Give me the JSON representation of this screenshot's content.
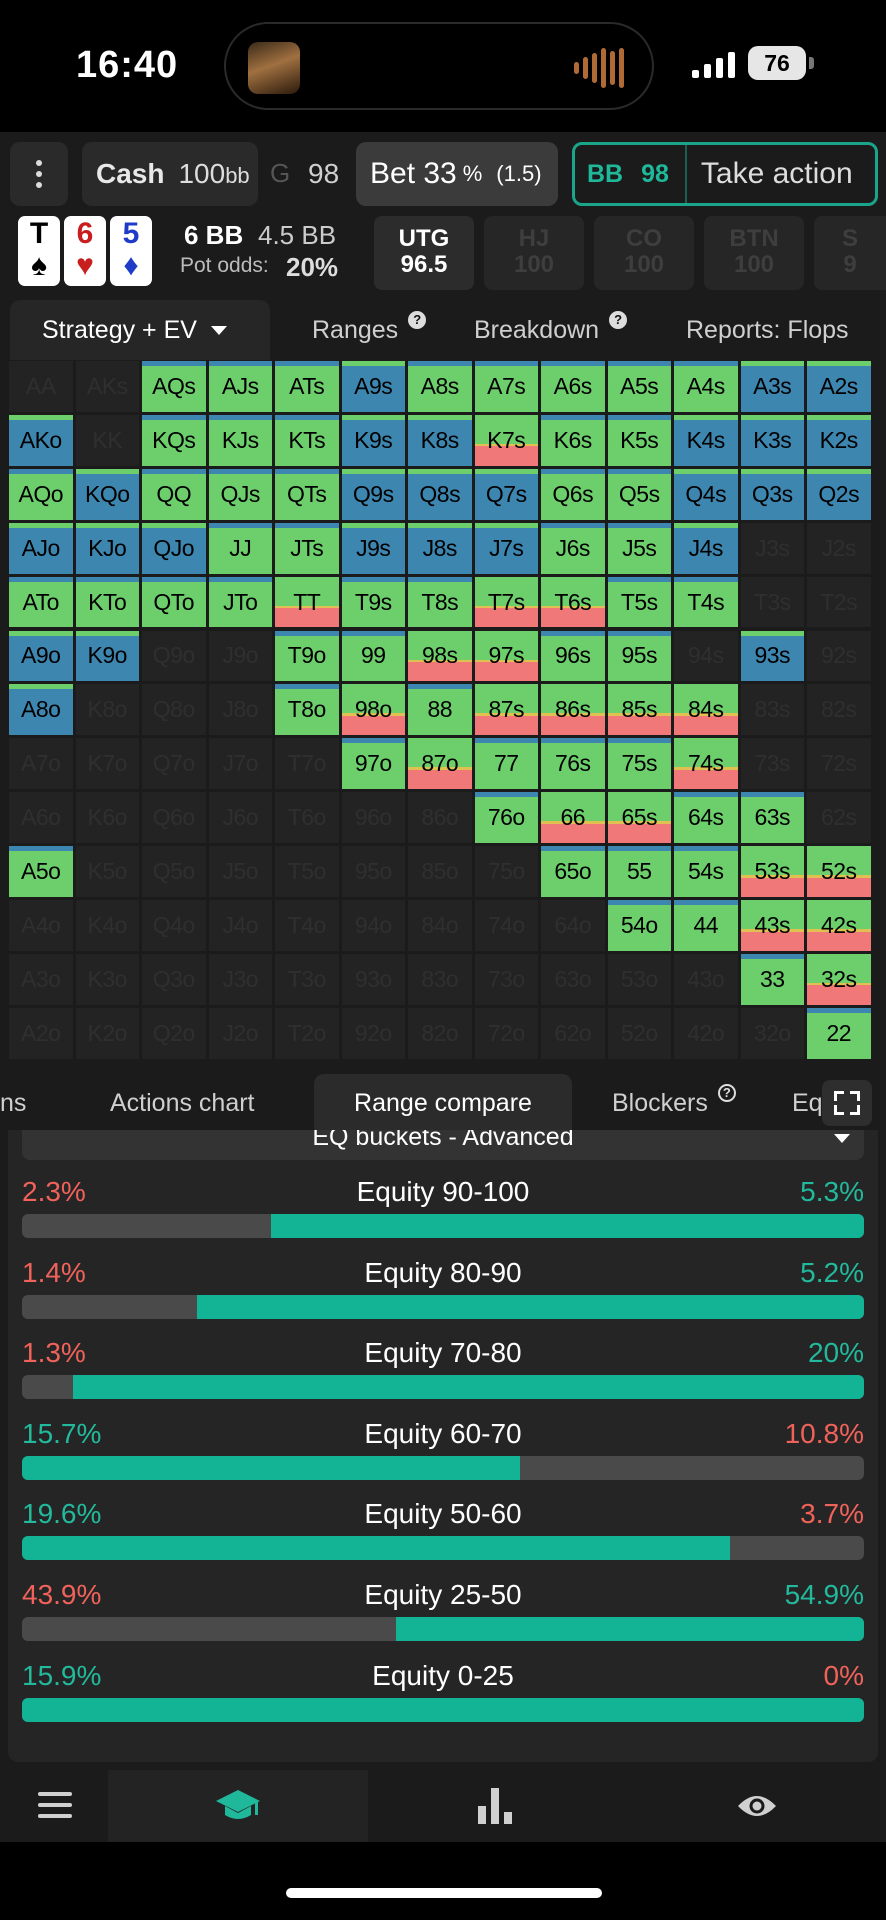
{
  "status_bar": {
    "time": "16:40",
    "battery": "76"
  },
  "toolbar": {
    "game": "Cash",
    "stack": "100",
    "stack_unit": "bb",
    "prev_chip": "G",
    "prev_value": "98",
    "bet_label": "Bet 33",
    "bet_pct": "%",
    "bet_size": "(1.5)",
    "bb_label": "BB",
    "bb_value": "98",
    "take_action": "Take action"
  },
  "board": {
    "cards": [
      {
        "rank": "T",
        "suit": "♠",
        "color": "#000000"
      },
      {
        "rank": "6",
        "suit": "♥",
        "color": "#c81e1e"
      },
      {
        "rank": "5",
        "suit": "♦",
        "color": "#1e3cc8"
      }
    ],
    "pot": "6 BB",
    "bet": "4.5 BB",
    "pot_odds_label": "Pot odds:",
    "pot_odds": "20%"
  },
  "positions": [
    {
      "name": "UTG",
      "stack": "96.5",
      "active": true
    },
    {
      "name": "HJ",
      "stack": "100",
      "active": false
    },
    {
      "name": "CO",
      "stack": "100",
      "active": false
    },
    {
      "name": "BTN",
      "stack": "100",
      "active": false
    },
    {
      "name": "S",
      "stack": "9",
      "active": false
    }
  ],
  "main_tabs": [
    {
      "label": "Strategy + EV",
      "selected": true
    },
    {
      "label": "Ranges",
      "help": "?"
    },
    {
      "label": "Breakdown",
      "help": "?"
    },
    {
      "label": "Reports: Flops"
    }
  ],
  "colors": {
    "green": "#6ccf6c",
    "blue": "#3d86b0",
    "red": "#f07878",
    "gold": "#e0c050",
    "teal": "#13b395",
    "coral": "#f0625a"
  },
  "grid": {
    "rows": [
      [
        "AA",
        "AKs",
        "AQs",
        "AJs",
        "ATs",
        "A9s",
        "A8s",
        "A7s",
        "A6s",
        "A5s",
        "A4s",
        "A3s",
        "A2s"
      ],
      [
        "AKo",
        "KK",
        "KQs",
        "KJs",
        "KTs",
        "K9s",
        "K8s",
        "K7s",
        "K6s",
        "K5s",
        "K4s",
        "K3s",
        "K2s"
      ],
      [
        "AQo",
        "KQo",
        "QQ",
        "QJs",
        "QTs",
        "Q9s",
        "Q8s",
        "Q7s",
        "Q6s",
        "Q5s",
        "Q4s",
        "Q3s",
        "Q2s"
      ],
      [
        "AJo",
        "KJo",
        "QJo",
        "JJ",
        "JTs",
        "J9s",
        "J8s",
        "J7s",
        "J6s",
        "J5s",
        "J4s",
        "J3s",
        "J2s"
      ],
      [
        "ATo",
        "KTo",
        "QTo",
        "JTo",
        "TT",
        "T9s",
        "T8s",
        "T7s",
        "T6s",
        "T5s",
        "T4s",
        "T3s",
        "T2s"
      ],
      [
        "A9o",
        "K9o",
        "Q9o",
        "J9o",
        "T9o",
        "99",
        "98s",
        "97s",
        "96s",
        "95s",
        "94s",
        "93s",
        "92s"
      ],
      [
        "A8o",
        "K8o",
        "Q8o",
        "J8o",
        "T8o",
        "98o",
        "88",
        "87s",
        "86s",
        "85s",
        "84s",
        "83s",
        "82s"
      ],
      [
        "A7o",
        "K7o",
        "Q7o",
        "J7o",
        "T7o",
        "97o",
        "87o",
        "77",
        "76s",
        "75s",
        "74s",
        "73s",
        "72s"
      ],
      [
        "A6o",
        "K6o",
        "Q6o",
        "J6o",
        "T6o",
        "96o",
        "86o",
        "76o",
        "66",
        "65s",
        "64s",
        "63s",
        "62s"
      ],
      [
        "A5o",
        "K5o",
        "Q5o",
        "J5o",
        "T5o",
        "95o",
        "85o",
        "75o",
        "65o",
        "55",
        "54s",
        "53s",
        "52s"
      ],
      [
        "A4o",
        "K4o",
        "Q4o",
        "J4o",
        "T4o",
        "94o",
        "84o",
        "74o",
        "64o",
        "54o",
        "44",
        "43s",
        "42s"
      ],
      [
        "A3o",
        "K3o",
        "Q3o",
        "J3o",
        "T3o",
        "93o",
        "83o",
        "73o",
        "63o",
        "53o",
        "43o",
        "33",
        "32s"
      ],
      [
        "A2o",
        "K2o",
        "Q2o",
        "J2o",
        "T2o",
        "92o",
        "82o",
        "72o",
        "62o",
        "52o",
        "42o",
        "32o",
        "22"
      ]
    ],
    "strategy": [
      [
        "n",
        "n",
        "G",
        "G",
        "G",
        "B",
        "G",
        "G",
        "G",
        "G",
        "G",
        "B",
        "B"
      ],
      [
        "B",
        "n",
        "G",
        "G",
        "G",
        "B",
        "B",
        "R",
        "G",
        "G",
        "B",
        "B",
        "B"
      ],
      [
        "G",
        "B",
        "G",
        "G",
        "G",
        "B",
        "B",
        "B",
        "G",
        "G",
        "B",
        "B",
        "B"
      ],
      [
        "B",
        "B",
        "B",
        "G",
        "G",
        "B",
        "B",
        "B",
        "G",
        "G",
        "B",
        "n",
        "n"
      ],
      [
        "G",
        "G",
        "G",
        "G",
        "R",
        "G",
        "G",
        "R",
        "R",
        "G",
        "G",
        "n",
        "n"
      ],
      [
        "B",
        "B",
        "n",
        "n",
        "G",
        "G",
        "R",
        "R",
        "G",
        "G",
        "n",
        "B",
        "n"
      ],
      [
        "B",
        "n",
        "n",
        "n",
        "G",
        "R",
        "G",
        "R",
        "R",
        "R",
        "R",
        "n",
        "n"
      ],
      [
        "n",
        "n",
        "n",
        "n",
        "n",
        "G",
        "R",
        "G",
        "G",
        "G",
        "R",
        "n",
        "n"
      ],
      [
        "n",
        "n",
        "n",
        "n",
        "n",
        "n",
        "n",
        "G",
        "R",
        "R",
        "G",
        "G",
        "n"
      ],
      [
        "G",
        "n",
        "n",
        "n",
        "n",
        "n",
        "n",
        "n",
        "G",
        "G",
        "G",
        "R",
        "R"
      ],
      [
        "n",
        "n",
        "n",
        "n",
        "n",
        "n",
        "n",
        "n",
        "n",
        "G",
        "G",
        "R",
        "R"
      ],
      [
        "n",
        "n",
        "n",
        "n",
        "n",
        "n",
        "n",
        "n",
        "n",
        "n",
        "n",
        "G",
        "R"
      ],
      [
        "n",
        "n",
        "n",
        "n",
        "n",
        "n",
        "n",
        "n",
        "n",
        "n",
        "n",
        "n",
        "G"
      ]
    ]
  },
  "sub_tabs": [
    {
      "label": "ns"
    },
    {
      "label": "Actions chart"
    },
    {
      "label": "Range compare",
      "selected": true
    },
    {
      "label": "Blockers",
      "help": "?"
    },
    {
      "label": "Eq"
    }
  ],
  "dropdown": {
    "label": "EQ buckets - Advanced"
  },
  "buckets": [
    {
      "label": "Equity 90-100",
      "left": "2.3%",
      "right": "5.3%",
      "left_color": "red",
      "right_color": "teal",
      "fill_start": 0.296,
      "fill_end": 1.0
    },
    {
      "label": "Equity 80-90",
      "left": "1.4%",
      "right": "5.2%",
      "left_color": "red",
      "right_color": "teal",
      "fill_start": 0.208,
      "fill_end": 1.0
    },
    {
      "label": "Equity 70-80",
      "left": "1.3%",
      "right": "20%",
      "left_color": "red",
      "right_color": "teal",
      "fill_start": 0.061,
      "fill_end": 1.0
    },
    {
      "label": "Equity 60-70",
      "left": "15.7%",
      "right": "10.8%",
      "left_color": "teal",
      "right_color": "red",
      "fill_start": 0.0,
      "fill_end": 0.592
    },
    {
      "label": "Equity 50-60",
      "left": "19.6%",
      "right": "3.7%",
      "left_color": "teal",
      "right_color": "red",
      "fill_start": 0.0,
      "fill_end": 0.841
    },
    {
      "label": "Equity 25-50",
      "left": "43.9%",
      "right": "54.9%",
      "left_color": "red",
      "right_color": "teal",
      "fill_start": 0.444,
      "fill_end": 1.0
    },
    {
      "label": "Equity 0-25",
      "left": "15.9%",
      "right": "0%",
      "left_color": "teal",
      "right_color": "red",
      "fill_start": 0.0,
      "fill_end": 1.0
    }
  ],
  "bottom_nav": [
    {
      "icon": "menu-icon"
    },
    {
      "icon": "graduation-cap-icon",
      "selected": true
    },
    {
      "icon": "bar-chart-icon"
    },
    {
      "icon": "eye-icon"
    }
  ]
}
